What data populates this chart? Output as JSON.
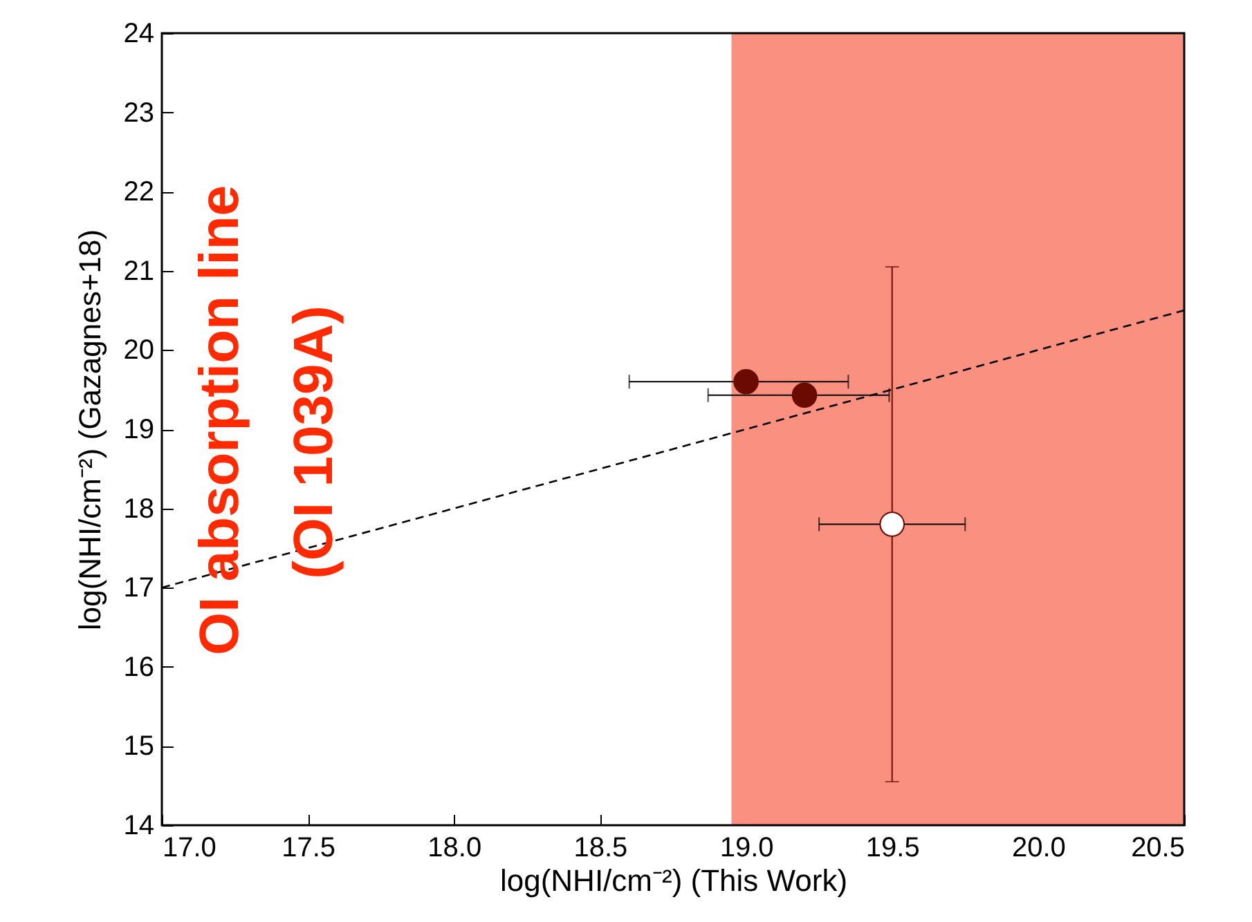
{
  "chart_data": {
    "type": "scatter",
    "xlabel": "log(NHI/cm⁻²) (This Work)",
    "ylabel": "log(NHI/cm⁻²) (Gazagnes+18)",
    "annotations": [
      "OI absorption line",
      "(OI 1039A)"
    ],
    "xlim": [
      17,
      20.5
    ],
    "xticks": [
      {
        "value": 17,
        "label": "17.0"
      },
      {
        "value": 17.5,
        "label": "17.5"
      },
      {
        "value": 18,
        "label": "18.0"
      },
      {
        "value": 18.5,
        "label": "18.5"
      },
      {
        "value": 19,
        "label": "19.0"
      },
      {
        "value": 19.5,
        "label": "19.5"
      },
      {
        "value": 20,
        "label": "20.0"
      },
      {
        "value": 20.5,
        "label": "20.5"
      }
    ],
    "ylim": [
      14,
      24
    ],
    "yticks": [
      14,
      15,
      16,
      17,
      18,
      19,
      20,
      21,
      22,
      23,
      24
    ],
    "bands": [
      {
        "axis": "x",
        "from": 18.95,
        "to": 20.5,
        "color": "#fa9080"
      }
    ],
    "series": [
      {
        "type": "line",
        "x": [
          17,
          20.5
        ],
        "values": [
          17,
          20.5
        ],
        "color": "#000000",
        "line_style": "dashed"
      },
      {
        "marker": "circle",
        "x": [
          19.0,
          19.2,
          19.5
        ],
        "values": [
          19.6,
          19.43,
          17.8
        ],
        "colors": [
          "#6b0a00",
          "#6b0a00",
          "#ffffff"
        ],
        "xerrors": [
          [
            18.6,
            19.35
          ],
          [
            18.87,
            19.49
          ],
          0.25
        ],
        "errors": [
          null,
          null,
          [
            14.55,
            21.05
          ]
        ]
      }
    ]
  }
}
